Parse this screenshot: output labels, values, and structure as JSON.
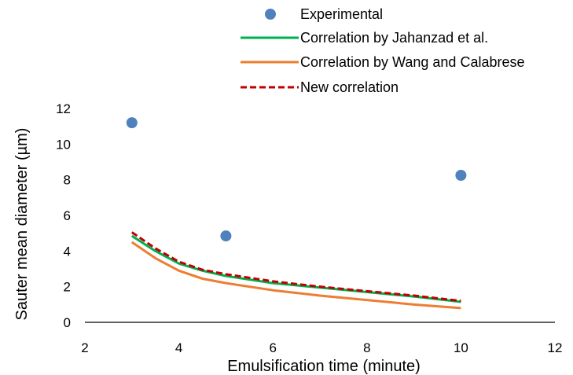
{
  "chart_data": {
    "type": "line",
    "xlabel": "Emulsification time (minute)",
    "ylabel": "Sauter mean diameter (µm)",
    "xlim": [
      2,
      12
    ],
    "ylim": [
      0,
      12
    ],
    "xticks": [
      2,
      4,
      6,
      8,
      10,
      12
    ],
    "yticks": [
      0,
      2,
      4,
      6,
      8,
      10,
      12
    ],
    "grid": false,
    "legend_position": "top-right",
    "series": [
      {
        "name": "Experimental",
        "kind": "scatter",
        "color": "#4f81bd",
        "x": [
          3,
          5,
          10
        ],
        "y": [
          11.2,
          4.85,
          8.25
        ]
      },
      {
        "name": "Correlation by Jahanzad et al.",
        "kind": "line",
        "style": "solid",
        "color": "#00b050",
        "x": [
          3,
          3.5,
          4,
          4.5,
          5,
          6,
          7,
          8,
          9,
          10
        ],
        "y": [
          4.85,
          4.0,
          3.3,
          2.9,
          2.6,
          2.2,
          1.95,
          1.7,
          1.45,
          1.15
        ]
      },
      {
        "name": "Correlation by Wang and Calabrese",
        "kind": "line",
        "style": "solid",
        "color": "#ed7d31",
        "x": [
          3,
          3.5,
          4,
          4.5,
          5,
          6,
          7,
          8,
          9,
          10
        ],
        "y": [
          4.5,
          3.6,
          2.9,
          2.45,
          2.2,
          1.8,
          1.5,
          1.25,
          1.0,
          0.8
        ]
      },
      {
        "name": "New correlation",
        "kind": "line",
        "style": "dashed",
        "color": "#c00000",
        "x": [
          3,
          3.5,
          4,
          4.5,
          5,
          6,
          7,
          8,
          9,
          10
        ],
        "y": [
          5.05,
          4.15,
          3.4,
          2.95,
          2.7,
          2.3,
          2.0,
          1.75,
          1.5,
          1.2
        ]
      }
    ]
  }
}
